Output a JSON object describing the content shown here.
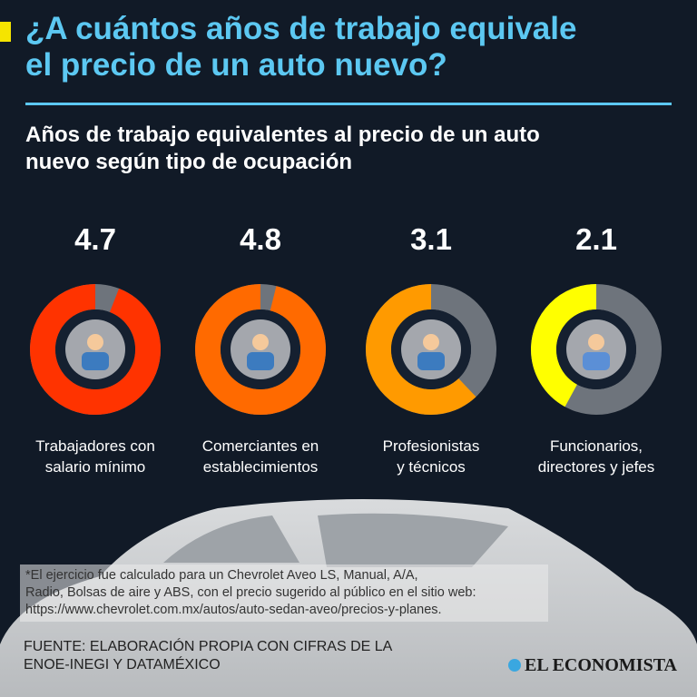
{
  "header": {
    "title_line1": "¿A cuántos años de trabajo equivale",
    "title_line2": "el precio de un auto nuevo?",
    "accent_color": "#f5e400",
    "title_color": "#5cc8f2"
  },
  "subtitle_line1": "Años de trabajo equivalentes al precio de un auto",
  "subtitle_line2": "nuevo según tipo de ocupación",
  "chart_data": {
    "type": "pie",
    "variant": "donut",
    "max": 5,
    "categories": [
      "Trabajadores con salario mínimo",
      "Comerciantes en establecimientos",
      "Profesionistas y técnicos",
      "Funcionarios, directores y jefes"
    ],
    "values": [
      4.7,
      4.8,
      3.1,
      2.1
    ],
    "value_labels": [
      "4.7",
      "4.8",
      "3.1",
      "2.1"
    ],
    "label_lines": [
      [
        "Trabajadores con",
        "salario mínimo"
      ],
      [
        "Comerciantes en",
        "establecimientos"
      ],
      [
        "Profesionistas",
        "y técnicos"
      ],
      [
        "Funcionarios,",
        "directores y jefes"
      ]
    ],
    "colors": [
      "#ff3300",
      "#ff6a00",
      "#ff9a00",
      "#ffff00"
    ],
    "remainder_color": "#6e747c",
    "icons": [
      "construction-worker-icon",
      "shop-vendor-icon",
      "professional-rocket-icon",
      "executive-team-icon"
    ]
  },
  "footnote": {
    "line1": "*El ejercicio fue calculado para un Chevrolet Aveo LS, Manual, A/A,",
    "line2": "Radio, Bolsas de aire y ABS, con el precio sugerido al público en el sitio web:",
    "line3": "https://www.chevrolet.com.mx/autos/auto-sedan-aveo/precios-y-planes."
  },
  "source": {
    "line1": "FUENTE: ELABORACIÓN PROPIA CON CIFRAS DE LA",
    "line2": "ENOE-INEGI Y DATAMÉXICO"
  },
  "logo": "EL ECONOMISTA"
}
